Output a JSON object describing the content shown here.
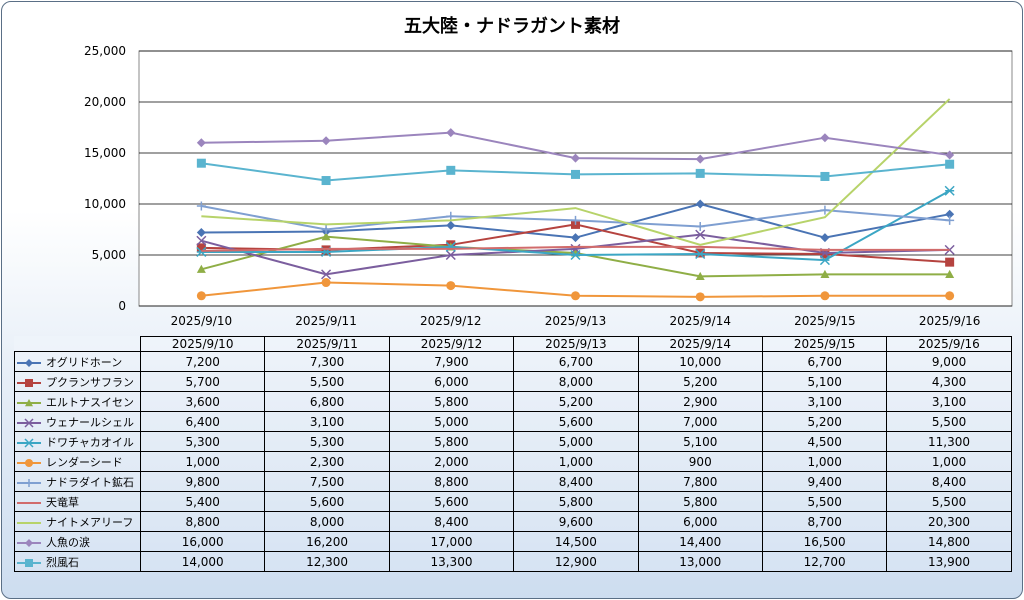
{
  "chart_data": {
    "type": "line",
    "title": "五大陸・ナドラガント素材",
    "categories": [
      "2025/9/10",
      "2025/9/11",
      "2025/9/12",
      "2025/9/13",
      "2025/9/14",
      "2025/9/15",
      "2025/9/16"
    ],
    "ylim": [
      0,
      25000
    ],
    "yticks": [
      "0",
      "5,000",
      "10,000",
      "15,000",
      "20,000",
      "25,000"
    ],
    "grid": true,
    "legend": "data-table",
    "series": [
      {
        "name": "オグリドホーン",
        "color": "#4a74b4",
        "marker": "diamond",
        "values": [
          7200,
          7300,
          7900,
          6700,
          10000,
          6700,
          9000
        ],
        "labels": [
          "7,200",
          "7,300",
          "7,900",
          "6,700",
          "10,000",
          "6,700",
          "9,000"
        ]
      },
      {
        "name": "プクランサフラン",
        "color": "#b5433f",
        "marker": "square",
        "values": [
          5700,
          5500,
          6000,
          8000,
          5200,
          5100,
          4300
        ],
        "labels": [
          "5,700",
          "5,500",
          "6,000",
          "8,000",
          "5,200",
          "5,100",
          "4,300"
        ]
      },
      {
        "name": "エルトナスイセン",
        "color": "#8fae46",
        "marker": "triangle",
        "values": [
          3600,
          6800,
          5800,
          5200,
          2900,
          3100,
          3100
        ],
        "labels": [
          "3,600",
          "6,800",
          "5,800",
          "5,200",
          "2,900",
          "3,100",
          "3,100"
        ]
      },
      {
        "name": "ウェナールシェル",
        "color": "#7b5e9e",
        "marker": "x",
        "values": [
          6400,
          3100,
          5000,
          5600,
          7000,
          5200,
          5500
        ],
        "labels": [
          "6,400",
          "3,100",
          "5,000",
          "5,600",
          "7,000",
          "5,200",
          "5,500"
        ]
      },
      {
        "name": "ドワチャカオイル",
        "color": "#3ba6c4",
        "marker": "star",
        "values": [
          5300,
          5300,
          5800,
          5000,
          5100,
          4500,
          11300
        ],
        "labels": [
          "5,300",
          "5,300",
          "5,800",
          "5,000",
          "5,100",
          "4,500",
          "11,300"
        ]
      },
      {
        "name": "レンダーシード",
        "color": "#f0963b",
        "marker": "circle",
        "values": [
          1000,
          2300,
          2000,
          1000,
          900,
          1000,
          1000
        ],
        "labels": [
          "1,000",
          "2,300",
          "2,000",
          "1,000",
          "900",
          "1,000",
          "1,000"
        ]
      },
      {
        "name": "ナドラダイト鉱石",
        "color": "#7f9fd1",
        "marker": "plus",
        "values": [
          9800,
          7500,
          8800,
          8400,
          7800,
          9400,
          8400
        ],
        "labels": [
          "9,800",
          "7,500",
          "8,800",
          "8,400",
          "7,800",
          "9,400",
          "8,400"
        ]
      },
      {
        "name": "天竜草",
        "color": "#d16b6b",
        "marker": "none",
        "values": [
          5400,
          5600,
          5600,
          5800,
          5800,
          5500,
          5500
        ],
        "labels": [
          "5,400",
          "5,600",
          "5,600",
          "5,800",
          "5,800",
          "5,500",
          "5,500"
        ]
      },
      {
        "name": "ナイトメアリーフ",
        "color": "#b7d36a",
        "marker": "none",
        "values": [
          8800,
          8000,
          8400,
          9600,
          6000,
          8700,
          20300
        ],
        "labels": [
          "8,800",
          "8,000",
          "8,400",
          "9,600",
          "6,000",
          "8,700",
          "20,300"
        ]
      },
      {
        "name": "人魚の涙",
        "color": "#9b85bd",
        "marker": "diamond",
        "values": [
          16000,
          16200,
          17000,
          14500,
          14400,
          16500,
          14800
        ],
        "labels": [
          "16,000",
          "16,200",
          "17,000",
          "14,500",
          "14,400",
          "16,500",
          "14,800"
        ]
      },
      {
        "name": "烈風石",
        "color": "#5ab4cf",
        "marker": "square",
        "values": [
          14000,
          12300,
          13300,
          12900,
          13000,
          12700,
          13900
        ],
        "labels": [
          "14,000",
          "12,300",
          "13,300",
          "12,900",
          "13,000",
          "12,700",
          "13,900"
        ]
      }
    ]
  }
}
